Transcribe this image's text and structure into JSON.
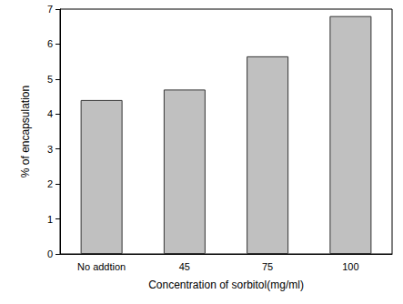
{
  "chart_data": {
    "type": "bar",
    "x_label": "Concentration of sorbitol(mg/ml)",
    "y_label": "% of encapsulation",
    "categories": [
      "No addtion",
      "45",
      "75",
      "100"
    ],
    "values": [
      4.4,
      4.7,
      5.65,
      6.8
    ],
    "color": "#c0c0c0",
    "ylim": [
      0,
      7
    ],
    "yticks": [
      0,
      1,
      2,
      3,
      4,
      5,
      6,
      7
    ],
    "grid": false
  }
}
